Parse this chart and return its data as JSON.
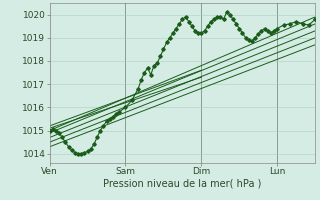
{
  "bg_color": "#d4ece4",
  "grid_color": "#b0ccbe",
  "line_color": "#1a5c1a",
  "ylabel_values": [
    1014,
    1015,
    1016,
    1017,
    1018,
    1019,
    1020
  ],
  "x_ticks": [
    0,
    48,
    96,
    144
  ],
  "x_tick_labels": [
    "Ven",
    "Sam",
    "Dim",
    "Lun"
  ],
  "xlabel": "Pression niveau de la mer( hPa )",
  "ylim": [
    1013.6,
    1020.5
  ],
  "xlim": [
    0,
    168
  ],
  "main_series": {
    "x": [
      0,
      2,
      4,
      6,
      8,
      10,
      12,
      14,
      16,
      18,
      20,
      22,
      24,
      26,
      28,
      30,
      32,
      34,
      36,
      38,
      40,
      42,
      44,
      48,
      52,
      56,
      58,
      60,
      62,
      64,
      66,
      68,
      70,
      72,
      74,
      76,
      78,
      80,
      82,
      84,
      86,
      88,
      90,
      92,
      94,
      96,
      98,
      100,
      102,
      104,
      106,
      108,
      110,
      112,
      114,
      116,
      118,
      120,
      122,
      124,
      126,
      128,
      130,
      132,
      134,
      136,
      138,
      140,
      142,
      144,
      148,
      152,
      156,
      160,
      164,
      168
    ],
    "y": [
      1015.0,
      1015.05,
      1015.0,
      1014.9,
      1014.7,
      1014.5,
      1014.3,
      1014.15,
      1014.05,
      1014.0,
      1014.0,
      1014.05,
      1014.1,
      1014.2,
      1014.4,
      1014.7,
      1015.0,
      1015.2,
      1015.4,
      1015.5,
      1015.6,
      1015.7,
      1015.8,
      1016.0,
      1016.3,
      1016.8,
      1017.2,
      1017.5,
      1017.7,
      1017.4,
      1017.8,
      1017.9,
      1018.2,
      1018.5,
      1018.8,
      1019.0,
      1019.2,
      1019.4,
      1019.6,
      1019.8,
      1019.9,
      1019.7,
      1019.5,
      1019.3,
      1019.2,
      1019.2,
      1019.3,
      1019.5,
      1019.7,
      1019.8,
      1019.9,
      1019.9,
      1019.8,
      1020.1,
      1020.0,
      1019.8,
      1019.6,
      1019.4,
      1019.2,
      1019.0,
      1018.9,
      1018.85,
      1019.0,
      1019.15,
      1019.3,
      1019.4,
      1019.3,
      1019.2,
      1019.3,
      1019.4,
      1019.55,
      1019.6,
      1019.7,
      1019.6,
      1019.55,
      1019.8
    ]
  },
  "trend_lines": [
    {
      "x0": 0,
      "y0": 1015.0,
      "x1": 168,
      "y1": 1019.9
    },
    {
      "x0": 0,
      "y0": 1014.9,
      "x1": 168,
      "y1": 1019.6
    },
    {
      "x0": 0,
      "y0": 1014.7,
      "x1": 168,
      "y1": 1019.3
    },
    {
      "x0": 0,
      "y0": 1014.5,
      "x1": 168,
      "y1": 1019.0
    },
    {
      "x0": 0,
      "y0": 1014.3,
      "x1": 168,
      "y1": 1018.7
    },
    {
      "x0": 0,
      "y0": 1015.1,
      "x1": 96,
      "y1": 1017.3
    },
    {
      "x0": 0,
      "y0": 1015.2,
      "x1": 96,
      "y1": 1017.6
    }
  ]
}
